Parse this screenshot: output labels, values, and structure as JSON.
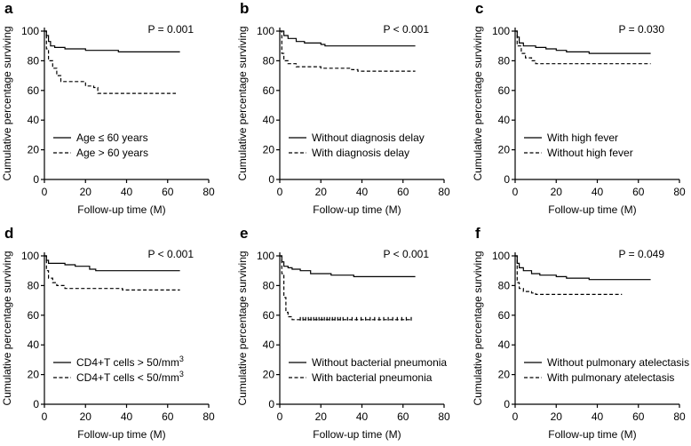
{
  "chart_data": [
    {
      "type": "line",
      "panel": "a",
      "xlabel": "Follow-up time (M)",
      "ylabel": "Cumulative percentage surviving",
      "xlim": [
        0,
        80
      ],
      "ylim": [
        0,
        100
      ],
      "xticks": [
        0,
        20,
        40,
        60,
        80
      ],
      "yticks": [
        0,
        20,
        40,
        60,
        80,
        100
      ],
      "p_value": "P = 0.001",
      "legend_position": "bottom-left",
      "series": [
        {
          "name": "Age ≤ 60 years",
          "style": "solid",
          "censored": false,
          "points": [
            [
              0,
              100
            ],
            [
              1,
              97
            ],
            [
              2,
              93
            ],
            [
              3,
              90
            ],
            [
              5,
              89
            ],
            [
              10,
              88
            ],
            [
              20,
              87
            ],
            [
              36,
              86
            ],
            [
              66,
              86
            ]
          ]
        },
        {
          "name": "Age > 60 years",
          "style": "dashed",
          "censored": false,
          "points": [
            [
              0,
              100
            ],
            [
              1,
              88
            ],
            [
              2,
              80
            ],
            [
              4,
              75
            ],
            [
              6,
              70
            ],
            [
              8,
              66
            ],
            [
              18,
              66
            ],
            [
              20,
              63
            ],
            [
              24,
              62
            ],
            [
              26,
              58
            ],
            [
              64,
              58
            ]
          ]
        }
      ]
    },
    {
      "type": "line",
      "panel": "b",
      "xlabel": "Follow-up time (M)",
      "ylabel": "Cumulative percentage surviving",
      "xlim": [
        0,
        80
      ],
      "ylim": [
        0,
        100
      ],
      "xticks": [
        0,
        20,
        40,
        60,
        80
      ],
      "yticks": [
        0,
        20,
        40,
        60,
        80,
        100
      ],
      "p_value": "P < 0.001",
      "legend_position": "bottom-left",
      "series": [
        {
          "name": "Without diagnosis delay",
          "style": "solid",
          "censored": false,
          "points": [
            [
              0,
              100
            ],
            [
              2,
              97
            ],
            [
              4,
              95
            ],
            [
              8,
              93
            ],
            [
              12,
              92
            ],
            [
              20,
              91
            ],
            [
              22,
              90
            ],
            [
              66,
              90
            ]
          ]
        },
        {
          "name": "With diagnosis delay",
          "style": "dashed",
          "censored": false,
          "points": [
            [
              0,
              100
            ],
            [
              1,
              85
            ],
            [
              2,
              80
            ],
            [
              4,
              78
            ],
            [
              8,
              76
            ],
            [
              20,
              75
            ],
            [
              35,
              74
            ],
            [
              38,
              73
            ],
            [
              66,
              73
            ]
          ]
        }
      ]
    },
    {
      "type": "line",
      "panel": "c",
      "xlabel": "Follow-up time (M)",
      "ylabel": "Cumulative percentage surviving",
      "xlim": [
        0,
        80
      ],
      "ylim": [
        0,
        100
      ],
      "xticks": [
        0,
        20,
        40,
        60,
        80
      ],
      "yticks": [
        0,
        20,
        40,
        60,
        80,
        100
      ],
      "p_value": "P = 0.030",
      "legend_position": "bottom-left",
      "series": [
        {
          "name": "With high fever",
          "style": "solid",
          "censored": false,
          "points": [
            [
              0,
              100
            ],
            [
              1,
              96
            ],
            [
              2,
              92
            ],
            [
              4,
              90
            ],
            [
              10,
              89
            ],
            [
              15,
              88
            ],
            [
              20,
              87
            ],
            [
              25,
              86
            ],
            [
              36,
              85
            ],
            [
              66,
              85
            ]
          ]
        },
        {
          "name": "Without high fever",
          "style": "dashed",
          "censored": false,
          "points": [
            [
              0,
              100
            ],
            [
              1,
              90
            ],
            [
              3,
              85
            ],
            [
              5,
              82
            ],
            [
              8,
              80
            ],
            [
              10,
              78
            ],
            [
              66,
              78
            ]
          ]
        }
      ]
    },
    {
      "type": "line",
      "panel": "d",
      "xlabel": "Follow-up time (M)",
      "ylabel": "Cumulative percentage surviving",
      "xlim": [
        0,
        80
      ],
      "ylim": [
        0,
        100
      ],
      "xticks": [
        0,
        20,
        40,
        60,
        80
      ],
      "yticks": [
        0,
        20,
        40,
        60,
        80,
        100
      ],
      "p_value": "P < 0.001",
      "legend_position": "bottom-left",
      "series": [
        {
          "name": "CD4+T cells > 50/mm³",
          "style": "solid",
          "censored": false,
          "points": [
            [
              0,
              100
            ],
            [
              1,
              97
            ],
            [
              2,
              95
            ],
            [
              10,
              94
            ],
            [
              15,
              93
            ],
            [
              22,
              91
            ],
            [
              25,
              90
            ],
            [
              66,
              90
            ]
          ]
        },
        {
          "name": "CD4+T cells < 50/mm³",
          "style": "dashed",
          "censored": false,
          "points": [
            [
              0,
              100
            ],
            [
              1,
              90
            ],
            [
              2,
              85
            ],
            [
              4,
              82
            ],
            [
              6,
              80
            ],
            [
              10,
              78
            ],
            [
              36,
              78
            ],
            [
              38,
              77
            ],
            [
              66,
              77
            ]
          ]
        }
      ]
    },
    {
      "type": "line",
      "panel": "e",
      "xlabel": "Follow-up time (M)",
      "ylabel": "Cumulative percentage surviving",
      "xlim": [
        0,
        80
      ],
      "ylim": [
        0,
        100
      ],
      "xticks": [
        0,
        20,
        40,
        60,
        80
      ],
      "yticks": [
        0,
        20,
        40,
        60,
        80,
        100
      ],
      "p_value": "P < 0.001",
      "legend_position": "bottom-left",
      "series": [
        {
          "name": "Without bacterial pneumonia",
          "style": "solid",
          "censored": false,
          "points": [
            [
              0,
              100
            ],
            [
              1,
              96
            ],
            [
              2,
              93
            ],
            [
              4,
              92
            ],
            [
              6,
              91
            ],
            [
              10,
              90
            ],
            [
              15,
              88
            ],
            [
              22,
              88
            ],
            [
              25,
              87
            ],
            [
              36,
              86
            ],
            [
              66,
              86
            ]
          ]
        },
        {
          "name": "With bacterial pneumonia",
          "style": "dashed",
          "censored": true,
          "points": [
            [
              0,
              100
            ],
            [
              1,
              88
            ],
            [
              2,
              72
            ],
            [
              3,
              62
            ],
            [
              4,
              59
            ],
            [
              6,
              57
            ],
            [
              64,
              57
            ]
          ]
        }
      ]
    },
    {
      "type": "line",
      "panel": "f",
      "xlabel": "Follow-up time (M)",
      "ylabel": "Cumulative percentage surviving",
      "xlim": [
        0,
        80
      ],
      "ylim": [
        0,
        100
      ],
      "xticks": [
        0,
        20,
        40,
        60,
        80
      ],
      "yticks": [
        0,
        20,
        40,
        60,
        80,
        100
      ],
      "p_value": "P = 0.049",
      "legend_position": "bottom-left",
      "series": [
        {
          "name": "Without pulmonary atelectasis",
          "style": "solid",
          "censored": false,
          "points": [
            [
              0,
              100
            ],
            [
              1,
              95
            ],
            [
              2,
              92
            ],
            [
              4,
              90
            ],
            [
              8,
              88
            ],
            [
              12,
              87
            ],
            [
              20,
              86
            ],
            [
              25,
              85
            ],
            [
              36,
              84
            ],
            [
              66,
              84
            ]
          ]
        },
        {
          "name": "With pulmonary atelectasis",
          "style": "dashed",
          "censored": false,
          "points": [
            [
              0,
              100
            ],
            [
              1,
              82
            ],
            [
              2,
              78
            ],
            [
              4,
              76
            ],
            [
              8,
              75
            ],
            [
              10,
              74
            ],
            [
              52,
              74
            ]
          ]
        }
      ]
    }
  ]
}
